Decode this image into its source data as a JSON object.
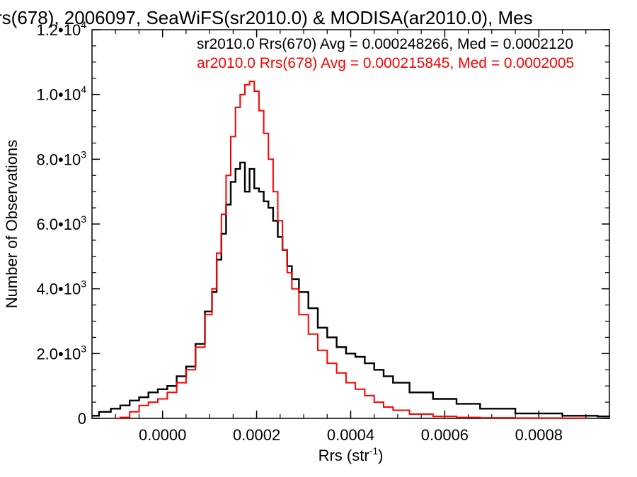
{
  "chart_data": {
    "type": "line",
    "step": true,
    "title": "rs(678), 2006097, SeaWiFS(sr2010.0) & MODISA(ar2010.0), Mes",
    "xlabel": "Rrs (str",
    "xlabel_sup": "-1",
    "xlabel_close": ")",
    "ylabel": "Number of Observations",
    "xlim": [
      -0.00015,
      0.00095
    ],
    "ylim": [
      0,
      12000
    ],
    "xticks": [
      {
        "value": 0.0,
        "label": "0.0000"
      },
      {
        "value": 0.0002,
        "label": "0.0002"
      },
      {
        "value": 0.0004,
        "label": "0.0004"
      },
      {
        "value": 0.0006,
        "label": "0.0006"
      },
      {
        "value": 0.0008,
        "label": "0.0008"
      }
    ],
    "yticks": [
      {
        "value": 0,
        "mant": "0",
        "exp": ""
      },
      {
        "value": 2000,
        "mant": "2.0•10",
        "exp": "3"
      },
      {
        "value": 4000,
        "mant": "4.0•10",
        "exp": "3"
      },
      {
        "value": 6000,
        "mant": "6.0•10",
        "exp": "3"
      },
      {
        "value": 8000,
        "mant": "8.0•10",
        "exp": "3"
      },
      {
        "value": 10000,
        "mant": "1.0•10",
        "exp": "4"
      },
      {
        "value": 12000,
        "mant": "1.2•10",
        "exp": "4"
      }
    ],
    "legend_position": "top-right",
    "series": [
      {
        "name": "sr2010.0 Rrs(670) Avg = 0.000248266, Med = 0.0002120",
        "color": "#000000",
        "x": [
          -0.00015,
          -0.00012,
          -0.0001,
          -8e-05,
          -6e-05,
          -4e-05,
          -2e-05,
          0.0,
          2e-05,
          4e-05,
          6e-05,
          8e-05,
          0.0001,
          0.00011,
          0.00012,
          0.00013,
          0.00014,
          0.00015,
          0.00016,
          0.00017,
          0.00018,
          0.00019,
          0.0002,
          0.00021,
          0.00022,
          0.00023,
          0.00024,
          0.00025,
          0.00026,
          0.00027,
          0.00028,
          0.0003,
          0.00032,
          0.00034,
          0.00036,
          0.00038,
          0.0004,
          0.00042,
          0.00044,
          0.00046,
          0.00048,
          0.0005,
          0.00055,
          0.0006,
          0.00065,
          0.0007,
          0.0008,
          0.0009,
          0.00095
        ],
        "y": [
          80,
          200,
          300,
          400,
          550,
          650,
          800,
          900,
          1000,
          1300,
          1600,
          2300,
          3300,
          3900,
          4900,
          5700,
          6600,
          7300,
          7700,
          7900,
          7000,
          7700,
          7100,
          7000,
          6700,
          6500,
          6100,
          5600,
          5200,
          4700,
          4300,
          3900,
          3400,
          2800,
          2500,
          2200,
          2000,
          1900,
          1700,
          1500,
          1300,
          1100,
          800,
          600,
          450,
          300,
          150,
          80,
          60
        ]
      },
      {
        "name": "ar2010.0 Rrs(678) Avg = 0.000215845, Med = 0.0002005",
        "color": "#ff0000",
        "x": [
          -0.0001,
          -8e-05,
          -6e-05,
          -4e-05,
          -2e-05,
          0.0,
          2e-05,
          4e-05,
          6e-05,
          8e-05,
          0.0001,
          0.00011,
          0.00012,
          0.00013,
          0.00014,
          0.00015,
          0.00016,
          0.00017,
          0.00018,
          0.00019,
          0.0002,
          0.00021,
          0.00022,
          0.00023,
          0.00024,
          0.00025,
          0.00026,
          0.00027,
          0.00028,
          0.0003,
          0.00032,
          0.00034,
          0.00036,
          0.00038,
          0.0004,
          0.00042,
          0.00044,
          0.00046,
          0.00048,
          0.0005,
          0.00055,
          0.0006,
          0.00065,
          0.0007,
          0.0008,
          0.0009
        ],
        "y": [
          0,
          30,
          200,
          400,
          500,
          600,
          800,
          1100,
          1500,
          2200,
          3200,
          4000,
          5100,
          6300,
          7500,
          8700,
          9600,
          10000,
          10300,
          10400,
          10100,
          9500,
          8800,
          8000,
          7000,
          6100,
          5200,
          4500,
          4000,
          3200,
          2600,
          2100,
          1700,
          1400,
          1100,
          900,
          700,
          500,
          350,
          250,
          130,
          60,
          30,
          20,
          10,
          5
        ]
      }
    ]
  }
}
